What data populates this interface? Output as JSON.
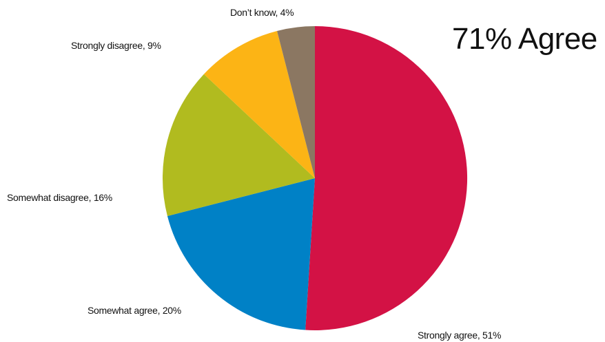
{
  "chart_data": {
    "type": "pie",
    "title": "",
    "headline": "71% Agree",
    "slices": [
      {
        "name": "Strongly agree",
        "value": 51,
        "label": "Strongly agree, 51%",
        "color": "#d31245"
      },
      {
        "name": "Somewhat agree",
        "value": 20,
        "label": "Somewhat agree, 20%",
        "color": "#0081c6"
      },
      {
        "name": "Somewhat disagree",
        "value": 16,
        "label": "Somewhat disagree, 16%",
        "color": "#b1bb1f"
      },
      {
        "name": "Strongly disagree",
        "value": 9,
        "label": "Strongly disagree, 9%",
        "color": "#fcb415"
      },
      {
        "name": "Don't know",
        "value": 4,
        "label": "Don’t know, 4%",
        "color": "#8b7762"
      }
    ]
  }
}
